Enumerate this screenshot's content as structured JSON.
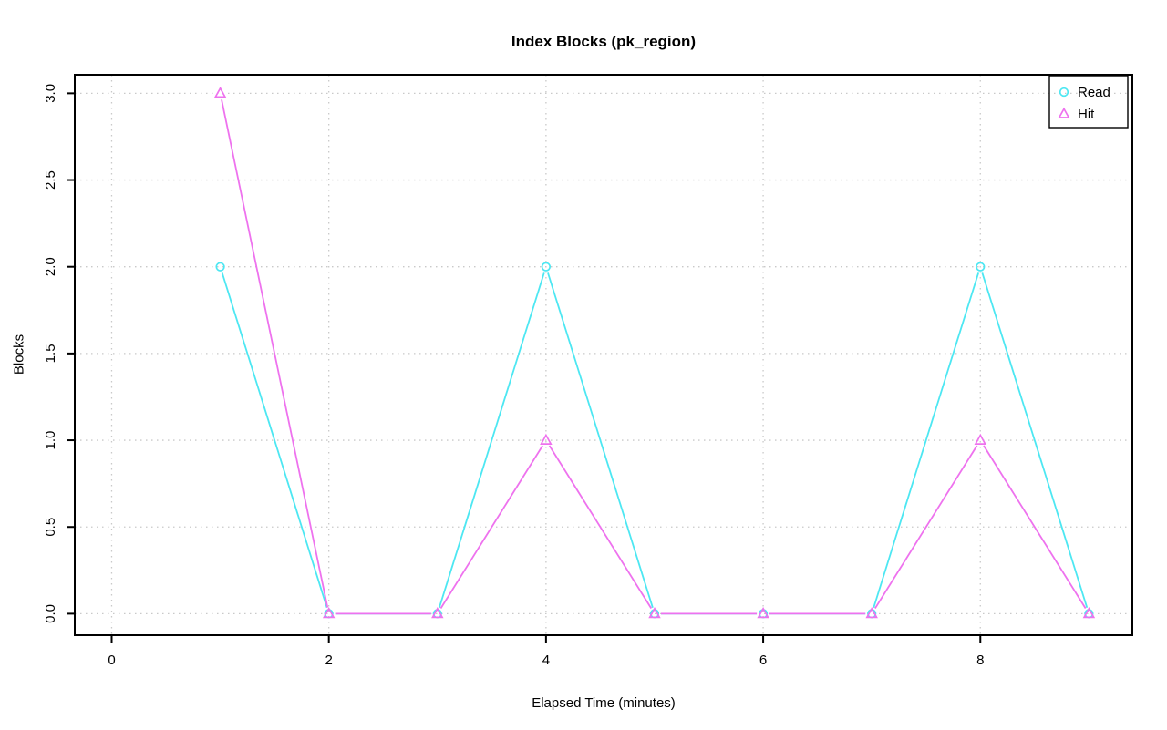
{
  "figure": {
    "background": "#FFFFFF"
  },
  "chart_data": {
    "type": "line",
    "title": "Index Blocks (pk_region)",
    "xlabel": "Elapsed Time (minutes)",
    "ylabel": "Blocks",
    "x": [
      1,
      2,
      3,
      4,
      5,
      6,
      7,
      8,
      9
    ],
    "series": [
      {
        "name": "Read",
        "marker": "circle",
        "color": "#4DE7F2",
        "values": [
          2,
          0,
          0,
          2,
          0,
          0,
          0,
          2,
          0
        ]
      },
      {
        "name": "Hit",
        "marker": "triangle",
        "color": "#EE72EE",
        "values": [
          3,
          0,
          0,
          1,
          0,
          0,
          0,
          1,
          0
        ]
      }
    ],
    "xticks": [
      "0",
      "2",
      "4",
      "6",
      "8"
    ],
    "xtick_values": [
      0,
      2,
      4,
      6,
      8
    ],
    "yticks": [
      "0.0",
      "0.5",
      "1.0",
      "1.5",
      "2.0",
      "2.5",
      "3.0"
    ],
    "ytick_values": [
      0,
      0.5,
      1,
      1.5,
      2,
      2.5,
      3
    ],
    "xlim": [
      -0.34,
      9.4
    ],
    "ylim": [
      -0.124,
      3.107
    ],
    "grid": "dotted",
    "grid_color": "#C9C9C9",
    "axis_color": "#000000",
    "legend": {
      "position": "top-right",
      "entries": [
        "Read",
        "Hit"
      ]
    }
  }
}
